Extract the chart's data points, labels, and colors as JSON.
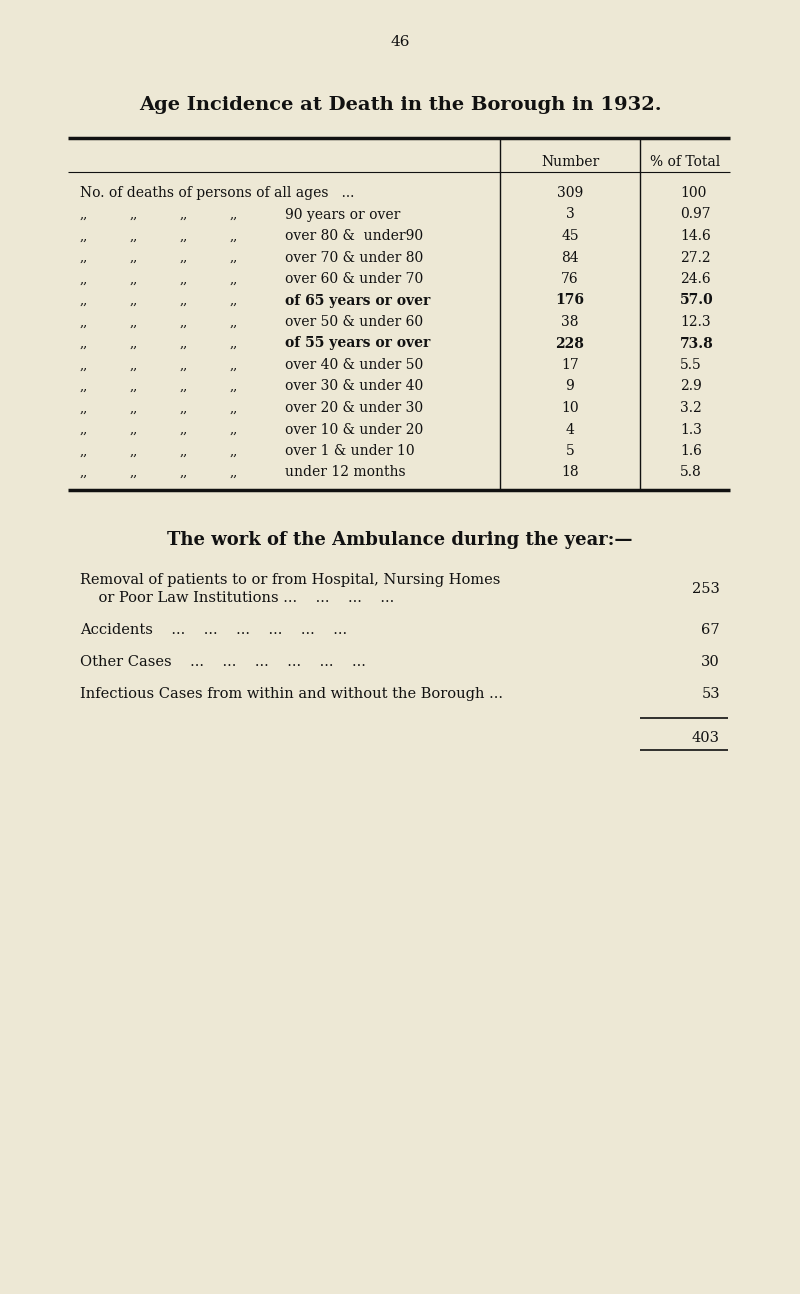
{
  "page_number": "46",
  "title": "Age Incidence at Death in the Borough in 1932.",
  "bg_color": "#ede8d5",
  "text_color": "#111111",
  "table_header_number": "Number",
  "table_header_pct": "% of Total",
  "table_rows": [
    {
      "label": "No. of deaths of persons of all ages   ...",
      "number": "309",
      "pct": "100",
      "bold": false,
      "indent": false
    },
    {
      "label": "90 years or over",
      "number": "3",
      "pct": "0.97",
      "bold": false,
      "indent": true
    },
    {
      "label": "over 80 &  under90",
      "number": "45",
      "pct": "14.6",
      "bold": false,
      "indent": true
    },
    {
      "label": "over 70 & under 80",
      "number": "84",
      "pct": "27.2",
      "bold": false,
      "indent": true
    },
    {
      "label": "over 60 & under 70",
      "number": "76",
      "pct": "24.6",
      "bold": false,
      "indent": true
    },
    {
      "label": "of 65 years or over",
      "number": "176",
      "pct": "57.0",
      "bold": true,
      "indent": true
    },
    {
      "label": "over 50 & under 60",
      "number": "38",
      "pct": "12.3",
      "bold": false,
      "indent": true
    },
    {
      "label": "of 55 years or over",
      "number": "228",
      "pct": "73.8",
      "bold": true,
      "indent": true
    },
    {
      "label": "over 40 & under 50",
      "number": "17",
      "pct": "5.5",
      "bold": false,
      "indent": true
    },
    {
      "label": "over 30 & under 40",
      "number": "9",
      "pct": "2.9",
      "bold": false,
      "indent": true
    },
    {
      "label": "over 20 & under 30",
      "number": "10",
      "pct": "3.2",
      "bold": false,
      "indent": true
    },
    {
      "label": "over 10 & under 20",
      "number": "4",
      "pct": "1.3",
      "bold": false,
      "indent": true
    },
    {
      "label": "over 1 & under 10",
      "number": "5",
      "pct": "1.6",
      "bold": false,
      "indent": true
    },
    {
      "label": "under 12 months",
      "number": "18",
      "pct": "5.8",
      "bold": false,
      "indent": true
    }
  ],
  "ambulance_title": "The work of the Ambulance during the year:—",
  "ambulance_line1": "Removal of patients to or from Hospital, Nursing Homes",
  "ambulance_line2": "    or Poor Law Institutions ...    ...    ...    ...",
  "ambulance_val1": "253",
  "ambulance_accidents": "Accidents    ...    ...    ...    ...    ...    ...",
  "ambulance_val2": "67",
  "ambulance_other": "Other Cases    ...    ...    ...    ...    ...    ...",
  "ambulance_val3": "30",
  "ambulance_infectious": "Infectious Cases from within and without the Borough ...",
  "ambulance_val4": "53",
  "total_label": "403"
}
